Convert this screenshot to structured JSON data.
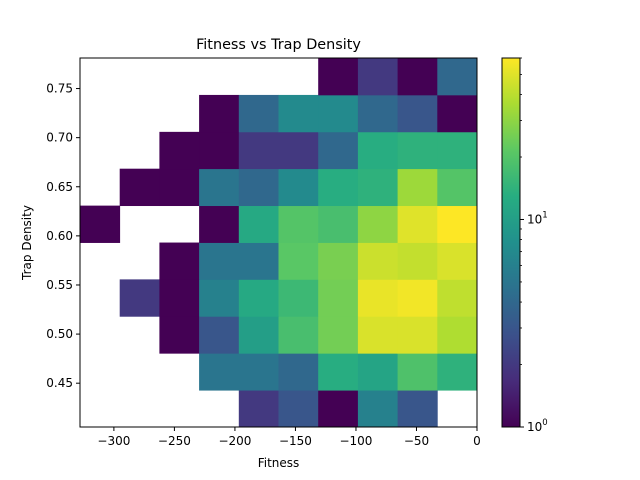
{
  "chart_data": {
    "type": "heatmap",
    "title": "Fitness vs Trap Density",
    "xlabel": "Fitness",
    "ylabel": "Trap Density",
    "xlim": [
      -328,
      0
    ],
    "ylim": [
      0.4054,
      0.7811
    ],
    "x_bin_edges": [
      -328.0,
      -295.2,
      -262.4,
      -229.6,
      -196.8,
      -164.0,
      -131.2,
      -98.4,
      -65.6,
      -32.8,
      0.0
    ],
    "y_bin_edges": [
      0.4054,
      0.4429,
      0.4805,
      0.5181,
      0.5557,
      0.5932,
      0.6308,
      0.6684,
      0.7059,
      0.7435,
      0.7811
    ],
    "x_ticks": [
      -300,
      -250,
      -200,
      -150,
      -100,
      -50,
      0
    ],
    "x_tick_labels": [
      "−300",
      "−250",
      "−200",
      "−150",
      "−100",
      "−50",
      "0"
    ],
    "y_ticks": [
      0.45,
      0.5,
      0.55,
      0.6,
      0.65,
      0.7,
      0.75
    ],
    "y_tick_labels": [
      "0.45",
      "0.50",
      "0.55",
      "0.60",
      "0.65",
      "0.70",
      "0.75"
    ],
    "counts": [
      [
        0,
        0,
        0,
        0,
        2,
        3,
        1,
        6,
        3,
        0
      ],
      [
        0,
        0,
        0,
        5,
        5,
        4,
        13,
        11,
        19,
        14
      ],
      [
        0,
        0,
        1,
        3,
        10,
        18,
        25,
        48,
        48,
        37
      ],
      [
        0,
        2,
        1,
        6,
        12,
        16,
        25,
        53,
        56,
        41
      ],
      [
        0,
        0,
        1,
        5,
        5,
        21,
        26,
        44,
        42,
        48
      ],
      [
        1,
        0,
        0,
        1,
        12,
        20,
        18,
        30,
        50,
        60
      ],
      [
        0,
        1,
        1,
        5,
        4,
        7,
        13,
        14,
        33,
        20
      ],
      [
        0,
        0,
        1,
        1,
        2,
        2,
        4,
        13,
        14,
        14
      ],
      [
        0,
        0,
        0,
        1,
        4,
        7,
        7,
        4,
        3,
        1
      ],
      [
        0,
        0,
        0,
        0,
        0,
        0,
        1,
        2,
        1,
        4
      ]
    ],
    "colorbar": {
      "scale": "log",
      "range": [
        1,
        60
      ],
      "colormap": "viridis",
      "ticks": [
        {
          "value": 1,
          "label": "10",
          "exp": "0"
        },
        {
          "value": 10,
          "label": "10",
          "exp": "1"
        }
      ]
    },
    "empty_cell_color": "#ffffff"
  }
}
